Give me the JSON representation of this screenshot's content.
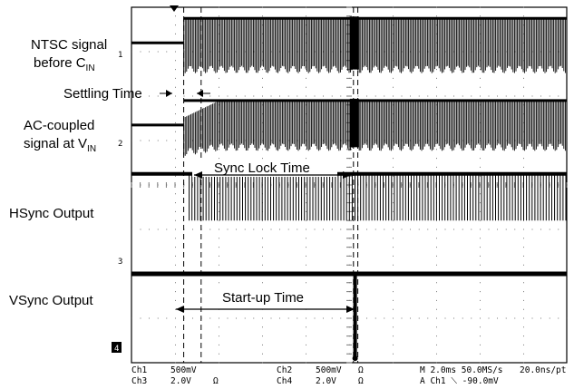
{
  "chart_data": {
    "type": "line",
    "title": "",
    "time_base": "M 2.0ms",
    "sample_rate": "50.0MS/s",
    "resolution": "20.0ns/pt",
    "trigger": "A Ch1 ⟍ -90.0mV",
    "grid": true,
    "divisions": {
      "x": 10,
      "y": 8
    },
    "x_range": [
      0,
      10
    ],
    "events": {
      "input_start_div": 1.2,
      "settling_end_div": 1.6,
      "sync_lock_end_div": 5.1,
      "startup_end_div": 5.2
    },
    "series": [
      {
        "name": "NTSC signal before CIN",
        "marker": "1",
        "baseline_div": 7.2,
        "high_div": 7.75,
        "low_div": 6.6,
        "settling": false
      },
      {
        "name": "AC-coupled signal at VIN",
        "marker": "2",
        "baseline_div": 5.35,
        "high_div": 5.9,
        "low_div": 4.85,
        "settling": true
      },
      {
        "name": "HSync Output",
        "marker": "3",
        "baseline_div": 3.2,
        "high_div": 4.25,
        "low_div": 3.2,
        "settling": false
      },
      {
        "name": "VSync Output",
        "marker": "4",
        "baseline_div": 2.0,
        "high_div": 2.0,
        "low_div": 0.1,
        "settling": false
      }
    ]
  },
  "labels": {
    "ntsc_line1": "NTSC signal",
    "ntsc_line2a": "before C",
    "ntsc_line2b": "IN",
    "ac_line1": "AC-coupled",
    "ac_line2a": "signal at V",
    "ac_line2b": "IN",
    "hsync": "HSync Output",
    "vsync": "VSync Output"
  },
  "annotations": {
    "settling": "Settling Time",
    "sync_lock": "Sync Lock Time",
    "startup": "Start-up Time"
  },
  "markers": {
    "m1": "1",
    "m2": "2",
    "m3": "3",
    "m4": "4"
  },
  "readout": {
    "ch1": "Ch1",
    "ch1_scale": "500mV",
    "ch2": "Ch2",
    "ch2_scale": "500mV",
    "ch3": "Ch3",
    "ch3_scale": "2.0V",
    "ch4": "Ch4",
    "ch4_scale": "2.0V",
    "ohm1": "Ω",
    "ohm2": "Ω",
    "ohm3": "Ω",
    "timebase": "M 2.0ms 50.0MS/s",
    "res": "20.0ns/pt",
    "trig": "A Ch1 ⟍ -90.0mV"
  }
}
